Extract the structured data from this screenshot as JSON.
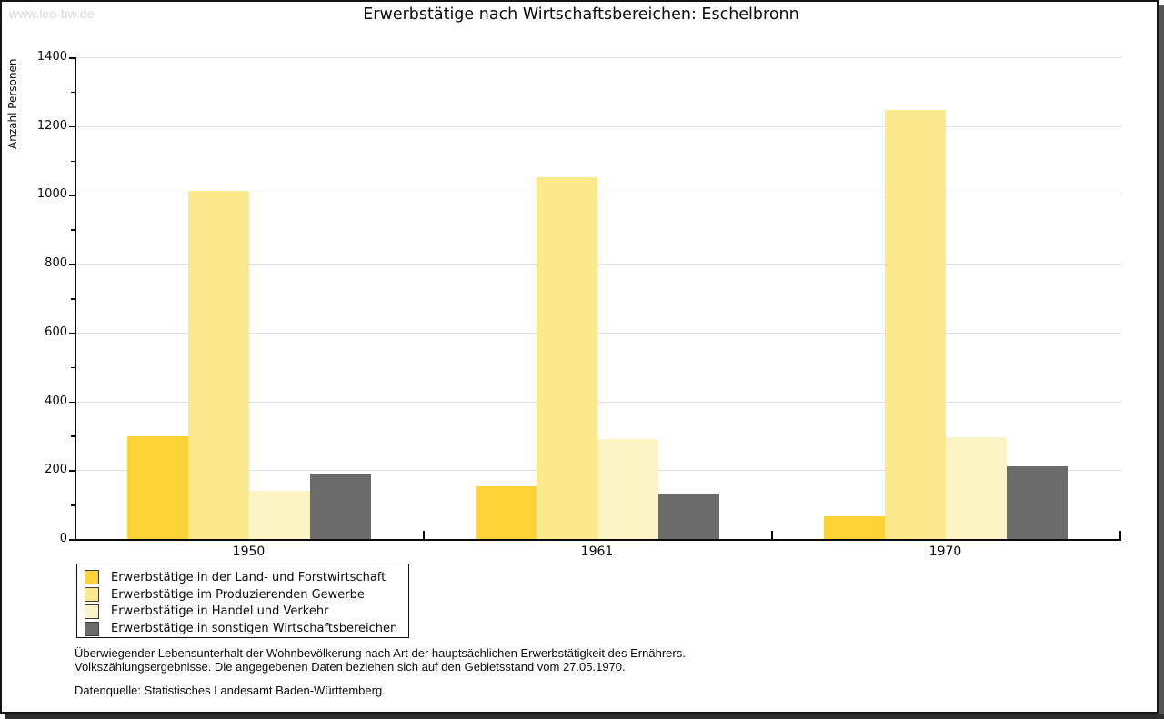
{
  "watermark": "www.leo-bw.de",
  "title": "Erwerbstätige nach Wirtschaftsbereichen: Eschelbronn",
  "chart_data": {
    "type": "bar",
    "title": "Erwerbstätige nach Wirtschaftsbereichen: Eschelbronn",
    "xlabel": "",
    "ylabel": "Anzahl Personen",
    "ylim": [
      0,
      1400
    ],
    "yticks": [
      0,
      200,
      400,
      600,
      800,
      1000,
      1200,
      1400
    ],
    "ytick_step": 200,
    "yminor_step": 100,
    "grid": true,
    "legend_position": "bottom-left",
    "categories": [
      "1950",
      "1961",
      "1970"
    ],
    "series": [
      {
        "name": "Erwerbstätige in der Land- und Forstwirtschaft",
        "color": "#fcd235",
        "values": [
          298,
          153,
          66
        ]
      },
      {
        "name": "Erwerbstätige im Produzierenden Gewerbe",
        "color": "#fce98e",
        "values": [
          1013,
          1052,
          1248
        ]
      },
      {
        "name": "Erwerbstätige in Handel und Verkehr",
        "color": "#fcf3c5",
        "values": [
          140,
          290,
          295
        ]
      },
      {
        "name": "Erwerbstätige in sonstigen Wirtschaftsbereichen",
        "color": "#6c6c6c",
        "values": [
          190,
          132,
          211
        ]
      }
    ]
  },
  "footnotes": {
    "line1": "Überwiegender Lebensunterhalt der Wohnbevölkerung nach Art der hauptsächlichen Erwerbstätigkeit des Ernährers.",
    "line2": "Volkszählungsergebnisse. Die angegebenen Daten beziehen sich auf den Gebietsstand vom 27.05.1970.",
    "source": "Datenquelle: Statistisches Landesamt Baden-Württemberg."
  },
  "colors": {
    "grid": "#e0e0e0",
    "axis": "#0a0a0a",
    "watermark": "#d8d8d8",
    "frame_shadow": "#565656"
  }
}
